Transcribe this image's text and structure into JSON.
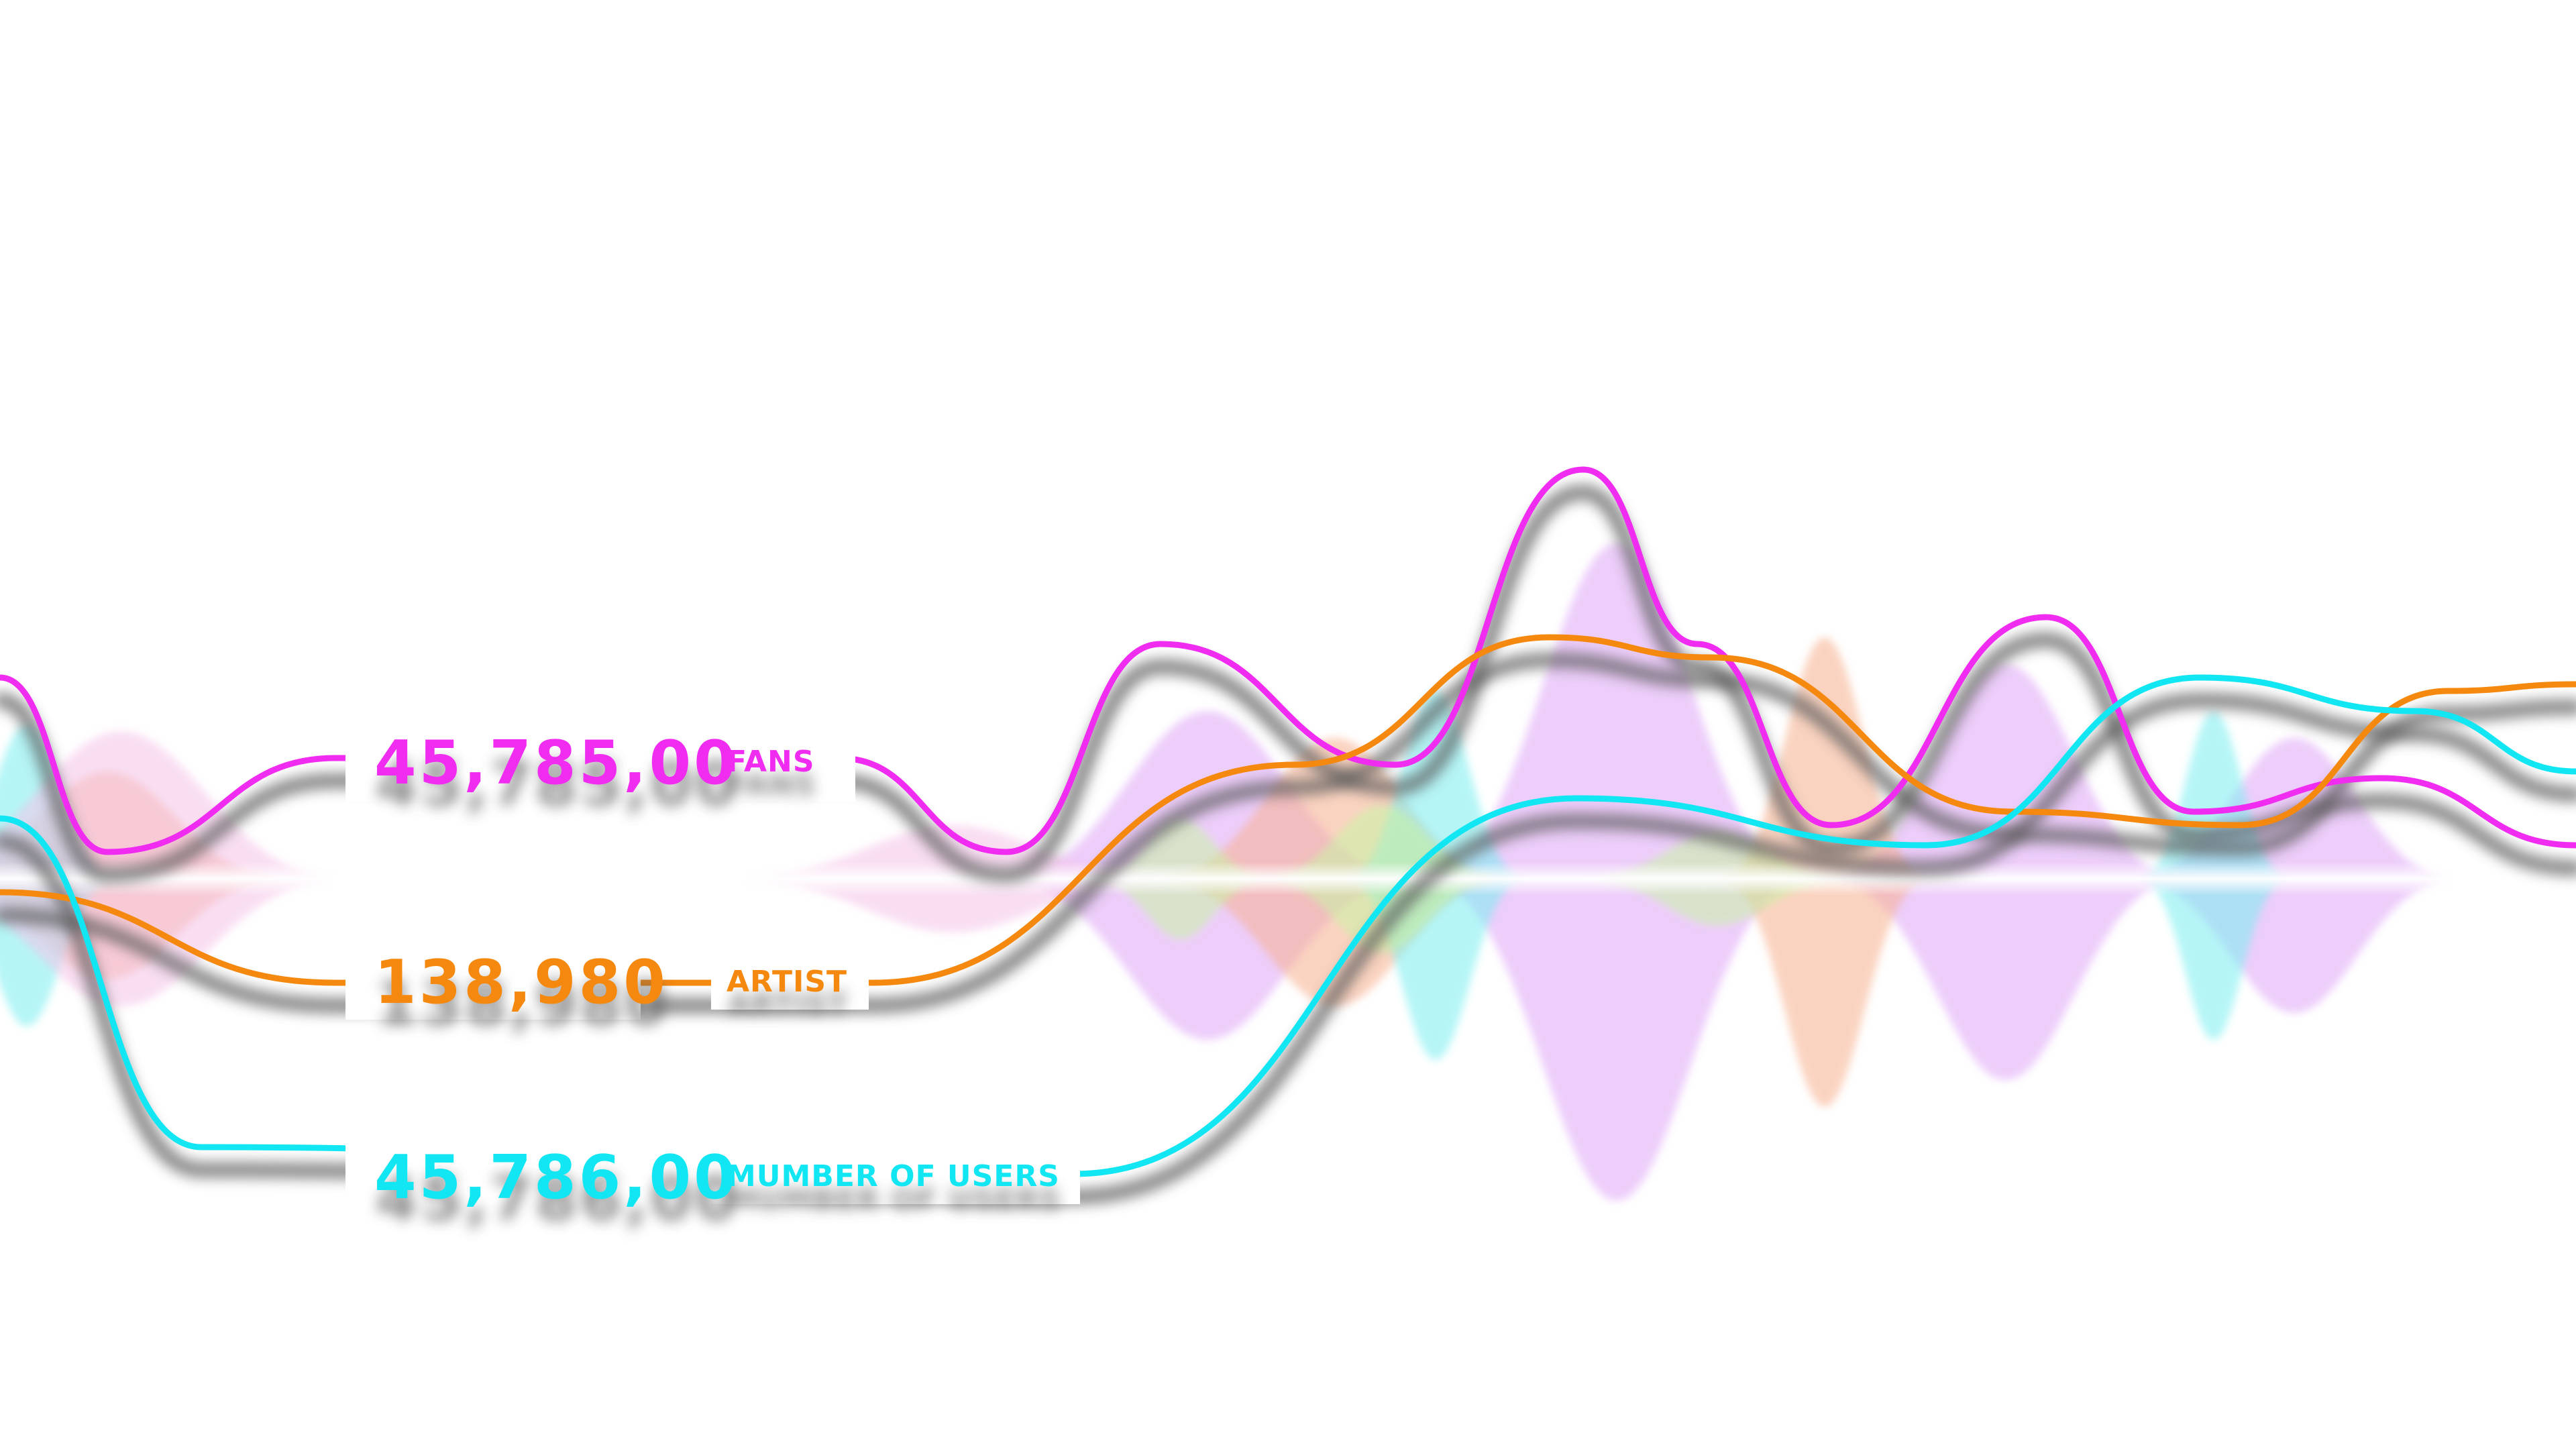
{
  "colors": {
    "fans": "#f02cf0",
    "artist": "#f5880f",
    "users": "#12e6f2",
    "shadow": "#5a5a5a",
    "wave_purple": "#dfa6f7",
    "wave_orange": "#f7b08e",
    "wave_cyan": "#79eef0",
    "wave_green": "#c8f4a6",
    "wave_pink": "#f5c4e8"
  },
  "metrics": [
    {
      "id": "fans",
      "value": "45,785,00",
      "label": "FANS"
    },
    {
      "id": "artist",
      "value": "138,980",
      "label": "ARTIST"
    },
    {
      "id": "users",
      "value": "45,786,00",
      "label": "MUMBER OF USERS"
    }
  ],
  "chart_data": {
    "type": "line",
    "series": [
      {
        "id": "fans",
        "points": [
          [
            0,
            1010
          ],
          [
            160,
            1270
          ],
          [
            500,
            1130
          ],
          [
            1250,
            1130
          ],
          [
            1500,
            1270
          ],
          [
            1730,
            960
          ],
          [
            2080,
            1140
          ],
          [
            2360,
            700
          ],
          [
            2530,
            960
          ],
          [
            2730,
            1230
          ],
          [
            3050,
            920
          ],
          [
            3270,
            1210
          ],
          [
            3550,
            1160
          ],
          [
            3840,
            1260
          ]
        ]
      },
      {
        "id": "artist",
        "points": [
          [
            0,
            1330
          ],
          [
            500,
            1465
          ],
          [
            1300,
            1465
          ],
          [
            1930,
            1140
          ],
          [
            2310,
            950
          ],
          [
            2550,
            980
          ],
          [
            3000,
            1210
          ],
          [
            3340,
            1230
          ],
          [
            3650,
            1030
          ],
          [
            3840,
            1020
          ]
        ]
      },
      {
        "id": "users",
        "points": [
          [
            0,
            1220
          ],
          [
            300,
            1710
          ],
          [
            1600,
            1750
          ],
          [
            2350,
            1190
          ],
          [
            2870,
            1260
          ],
          [
            3280,
            1010
          ],
          [
            3600,
            1060
          ],
          [
            3840,
            1150
          ]
        ]
      }
    ],
    "waves": [
      {
        "color_key": "wave_purple",
        "x": 1800,
        "up": 250,
        "down": 240,
        "w": 140
      },
      {
        "color_key": "wave_purple",
        "x": 2410,
        "up": 500,
        "down": 480,
        "w": 130
      },
      {
        "color_key": "wave_purple",
        "x": 2990,
        "up": 320,
        "down": 300,
        "w": 120
      },
      {
        "color_key": "wave_purple",
        "x": 3420,
        "up": 210,
        "down": 200,
        "w": 110
      },
      {
        "color_key": "wave_orange",
        "x": 2720,
        "up": 360,
        "down": 340,
        "w": 70
      },
      {
        "color_key": "wave_orange",
        "x": 1990,
        "up": 210,
        "down": 190,
        "w": 120
      },
      {
        "color_key": "wave_orange",
        "x": 160,
        "up": 160,
        "down": 150,
        "w": 120
      },
      {
        "color_key": "wave_cyan",
        "x": 2140,
        "up": 280,
        "down": 270,
        "w": 60
      },
      {
        "color_key": "wave_cyan",
        "x": 3300,
        "up": 250,
        "down": 240,
        "w": 50
      },
      {
        "color_key": "wave_cyan",
        "x": 40,
        "up": 230,
        "down": 220,
        "w": 60
      },
      {
        "color_key": "wave_green",
        "x": 1760,
        "up": 90,
        "down": 90,
        "w": 60
      },
      {
        "color_key": "wave_green",
        "x": 2060,
        "up": 110,
        "down": 110,
        "w": 80
      },
      {
        "color_key": "wave_green",
        "x": 2560,
        "up": 70,
        "down": 70,
        "w": 90
      },
      {
        "color_key": "wave_pink",
        "x": 180,
        "up": 220,
        "down": 190,
        "w": 150
      },
      {
        "color_key": "wave_pink",
        "x": 1420,
        "up": 80,
        "down": 80,
        "w": 150
      }
    ]
  }
}
